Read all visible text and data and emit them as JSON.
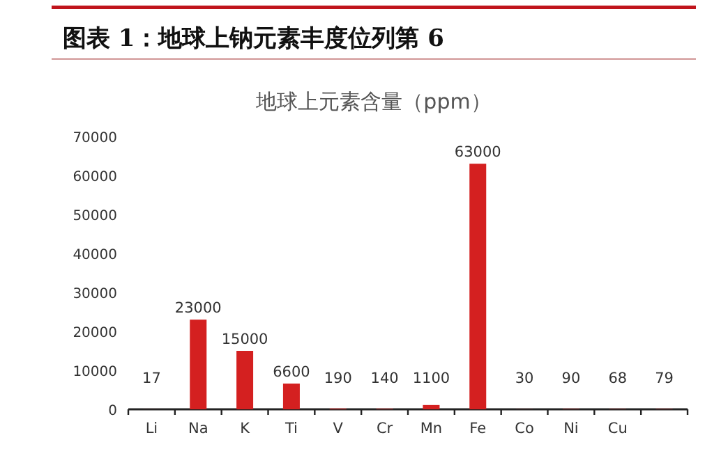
{
  "chart_data": {
    "type": "bar",
    "title": "图表 1：地球上钠元素丰度位列第 6",
    "subtitle": "地球上元素含量（ppm）",
    "categories": [
      "Li",
      "Na",
      "K",
      "Ti",
      "V",
      "Cr",
      "Mn",
      "Fe",
      "Co",
      "Ni",
      "Cu",
      null
    ],
    "values": [
      17,
      23000,
      15000,
      6600,
      190,
      140,
      1100,
      63000,
      30,
      90,
      68,
      79
    ],
    "color": "#d42020",
    "ylim": [
      0,
      70000
    ],
    "yticks": [
      0,
      10000,
      20000,
      30000,
      40000,
      50000,
      60000,
      70000
    ],
    "grid": false,
    "data_labels": true
  }
}
